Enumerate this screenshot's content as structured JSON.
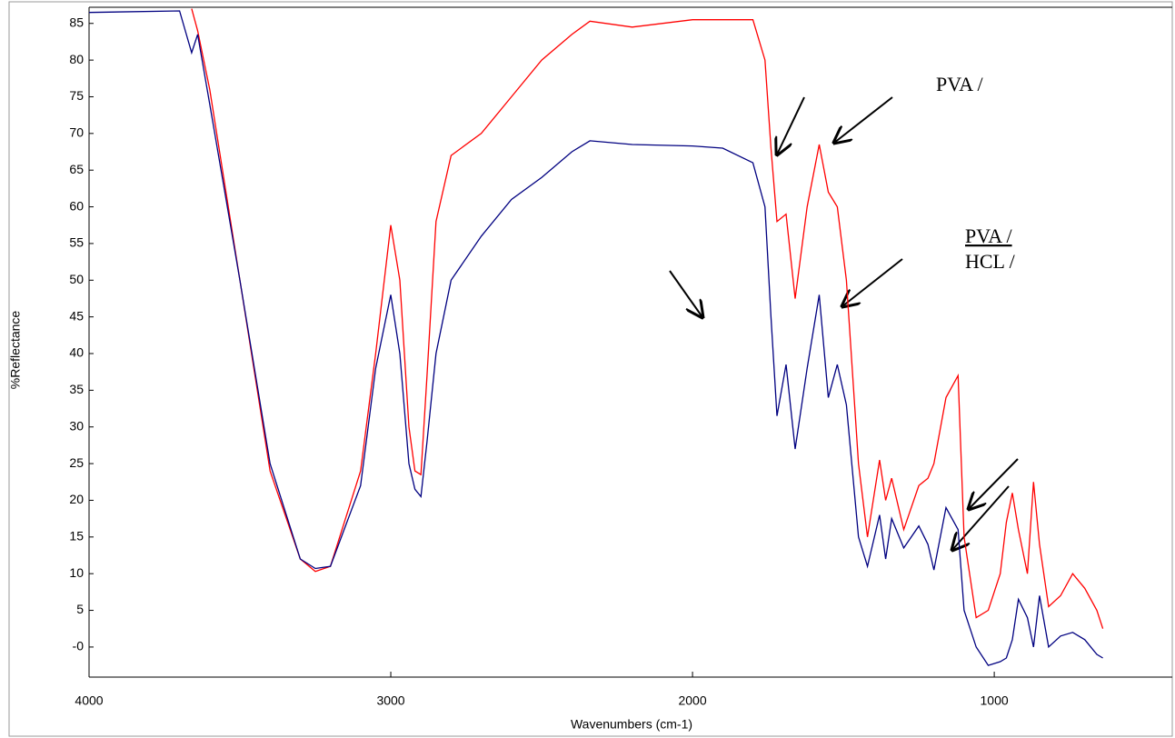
{
  "chart_data": {
    "type": "line",
    "xlabel": "Wavenumbers (cm-1)",
    "ylabel": "%Reflectance",
    "annotations": [
      "PVA /",
      "PVA /",
      "HCL /"
    ],
    "x": [
      4000,
      3700,
      3660,
      3640,
      3600,
      3500,
      3400,
      3300,
      3250,
      3200,
      3100,
      3050,
      3000,
      2970,
      2940,
      2920,
      2900,
      2880,
      2850,
      2800,
      2700,
      2600,
      2500,
      2400,
      2340,
      2200,
      2000,
      1900,
      1800,
      1760,
      1740,
      1720,
      1690,
      1660,
      1620,
      1580,
      1550,
      1520,
      1490,
      1450,
      1420,
      1380,
      1360,
      1340,
      1300,
      1250,
      1220,
      1200,
      1160,
      1120,
      1100,
      1060,
      1020,
      980,
      960,
      940,
      920,
      890,
      870,
      850,
      820,
      780,
      740,
      700,
      660,
      640
    ],
    "series": [
      {
        "name": "PVA",
        "color": "#ff0000",
        "values": [
          null,
          null,
          87,
          84,
          76,
          50,
          24,
          12,
          10.3,
          11,
          24,
          40,
          57.5,
          50,
          30,
          24,
          23.5,
          37,
          58,
          67,
          70,
          75,
          80,
          83.5,
          85.3,
          84.5,
          85.5,
          85.5,
          85.5,
          80,
          68,
          58,
          59,
          47.5,
          60,
          68.5,
          62,
          60,
          50,
          25,
          15,
          25.5,
          20,
          23,
          16,
          22,
          23,
          25,
          34,
          37,
          15,
          4,
          5,
          10,
          17,
          21,
          16,
          10,
          22.5,
          14,
          5.5,
          7,
          10,
          8,
          5,
          2.5
        ]
      },
      {
        "name": "PVA / HCL",
        "color": "#000080",
        "values": [
          86.5,
          86.7,
          81,
          83.5,
          74,
          50,
          25,
          12,
          10.7,
          11,
          22,
          38,
          48,
          40,
          25,
          21.5,
          20.5,
          28,
          40,
          50,
          56,
          61,
          64,
          67.5,
          69,
          68.5,
          68.3,
          68,
          66,
          60,
          45,
          31.5,
          38.5,
          27,
          38,
          48,
          34,
          38.5,
          33,
          15,
          11,
          18,
          12,
          17.5,
          13.5,
          16.5,
          14,
          10.5,
          19,
          16,
          5,
          0,
          -2.5,
          -2,
          -1.5,
          1,
          6.5,
          4,
          0,
          7,
          0,
          1.5,
          2,
          1,
          -1,
          -1.5
        ]
      }
    ],
    "xlim": [
      4000,
      410
    ],
    "xticks": [
      4000,
      3000,
      2000,
      1000
    ],
    "ylim": [
      -4.1,
      87.2
    ],
    "yticks": [
      {
        "value": 0,
        "label": "-0"
      },
      5,
      10,
      15,
      20,
      25,
      30,
      35,
      40,
      45,
      50,
      55,
      60,
      65,
      70,
      75,
      80,
      85
    ]
  }
}
